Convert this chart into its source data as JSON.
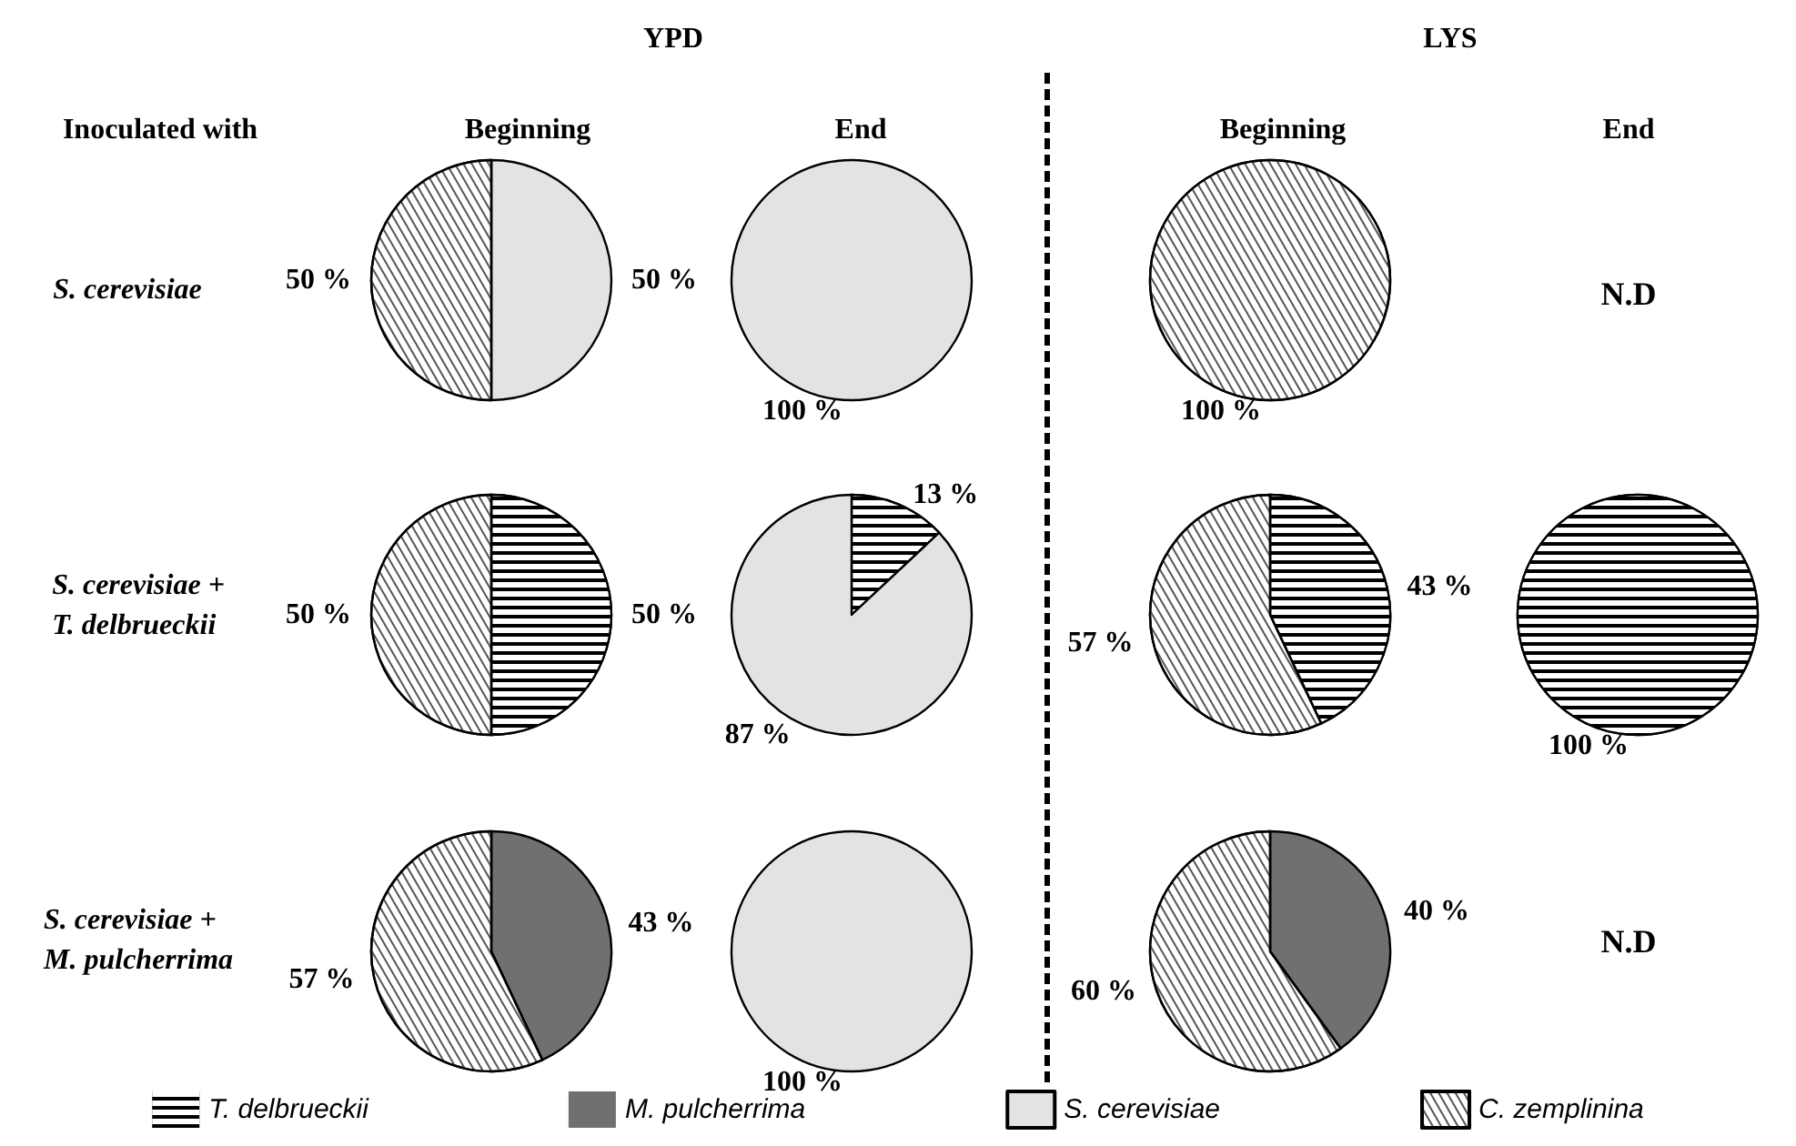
{
  "chart_data": {
    "type": "pie",
    "categories": [
      "T. delbrueckii",
      "M. pulcherrima",
      "S. cerevisiae",
      "C. zemplinina"
    ],
    "colors": [
      "#000000",
      "#707070",
      "#e3e3e3",
      "#ffffff"
    ],
    "legend": "bottom",
    "series": [
      {
        "values": [
          0,
          0,
          50,
          50
        ],
        "value_labels": [
          null,
          null,
          "50 %",
          "50 %"
        ]
      },
      {
        "values": [
          0,
          0,
          100,
          0
        ],
        "value_labels": [
          null,
          null,
          "100 %",
          null
        ]
      },
      {
        "values": [
          0,
          0,
          0,
          100
        ],
        "value_labels": [
          null,
          null,
          null,
          "100 %"
        ]
      },
      {
        "values": [
          50,
          0,
          0,
          50
        ],
        "value_labels": [
          "50 %",
          null,
          null,
          "50 %"
        ]
      },
      {
        "values": [
          13,
          0,
          87,
          0
        ],
        "value_labels": [
          "13 %",
          null,
          "87 %",
          null
        ]
      },
      {
        "values": [
          43,
          0,
          0,
          57
        ],
        "value_labels": [
          "43 %",
          null,
          null,
          "57 %"
        ]
      },
      {
        "values": [
          100,
          0,
          0,
          0
        ],
        "value_labels": [
          "100 %",
          null,
          null,
          null
        ]
      },
      {
        "values": [
          0,
          43,
          0,
          57
        ],
        "value_labels": [
          null,
          "43 %",
          null,
          "57 %"
        ]
      },
      {
        "values": [
          0,
          0,
          100,
          0
        ],
        "value_labels": [
          null,
          null,
          "100 %",
          null
        ]
      },
      {
        "values": [
          0,
          40,
          0,
          60
        ],
        "value_labels": [
          null,
          "40 %",
          null,
          "60 %"
        ]
      }
    ],
    "annotations": [
      "YPD",
      "LYS",
      "Inoculated with",
      "Beginning",
      "End",
      "Beginning",
      "End",
      "S. cerevisiae",
      "S. cerevisiae +\nT. delbrueckii",
      "S. cerevisiae +\nM. pulcherrima",
      "N.D",
      "N.D"
    ]
  }
}
